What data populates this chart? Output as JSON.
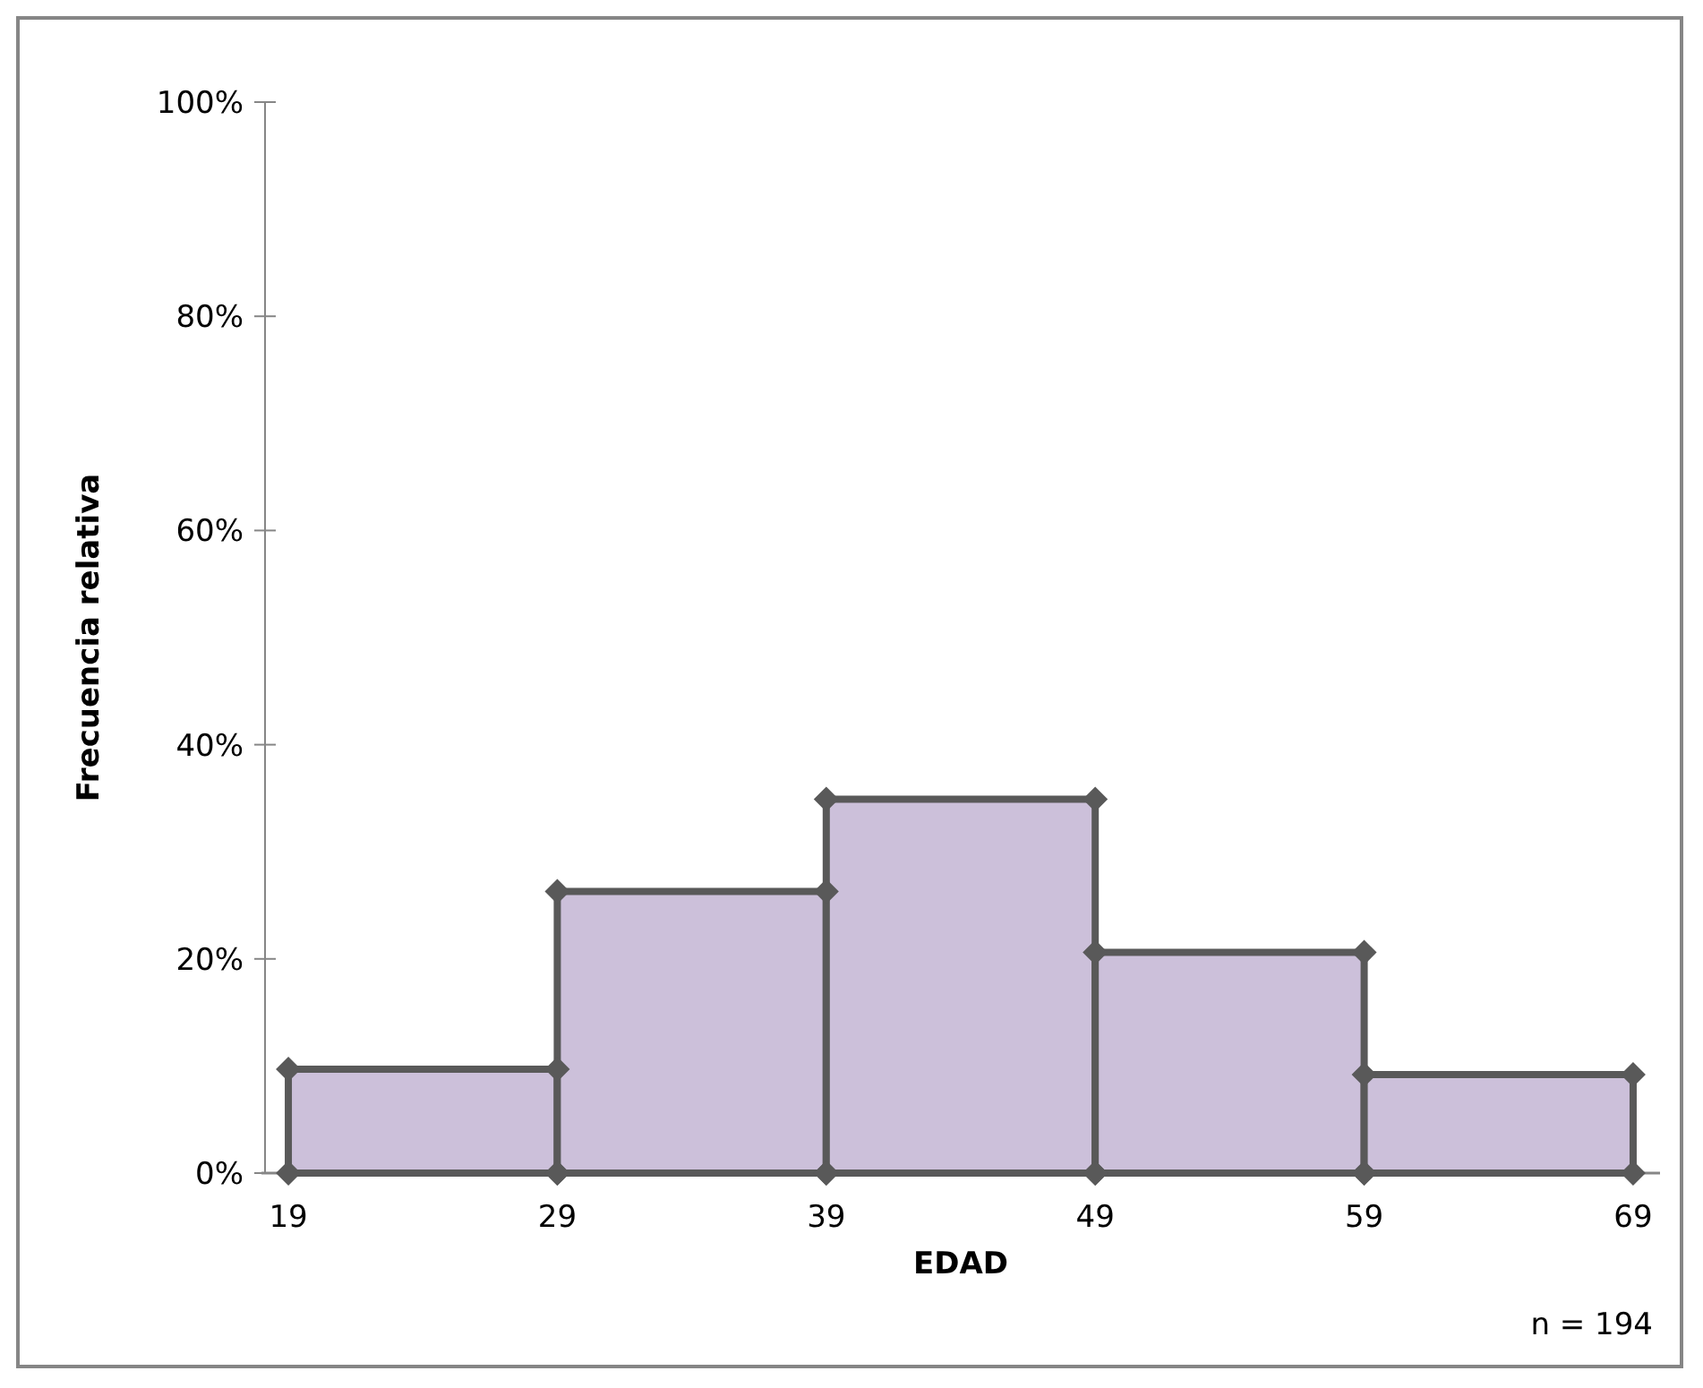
{
  "chart_data": {
    "type": "histogram",
    "xlabel": "EDAD",
    "ylabel": "Frecuencia relativa",
    "bins": [
      19,
      29,
      39,
      49,
      59,
      69
    ],
    "values": [
      9.7,
      26.3,
      34.9,
      20.6,
      9.2
    ],
    "color": "#ccc0da",
    "marker": "diamond",
    "xlim": [
      18,
      70
    ],
    "xticks": [
      19,
      29,
      39,
      49,
      59,
      69
    ],
    "ylim": [
      0,
      100
    ],
    "yticks": [
      {
        "value": 0,
        "label": "0%"
      },
      {
        "value": 20,
        "label": "20%"
      },
      {
        "value": 40,
        "label": "40%"
      },
      {
        "value": 60,
        "label": "60%"
      },
      {
        "value": 80,
        "label": "80%"
      },
      {
        "value": 100,
        "label": "100%"
      }
    ],
    "annotations": [
      "n = 194"
    ]
  }
}
